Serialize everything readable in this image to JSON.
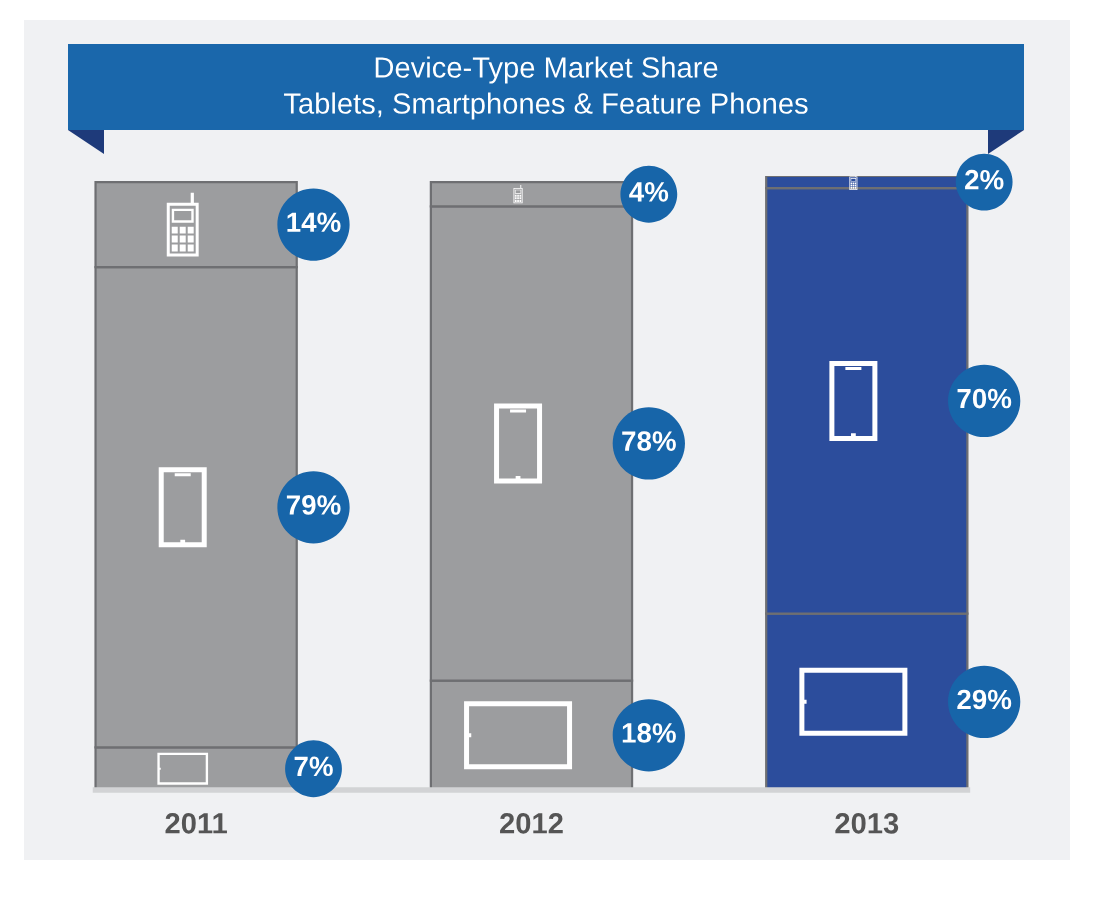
{
  "chart_data": {
    "type": "bar",
    "title": "Device-Type Market Share",
    "subtitle": "Tablets, Smartphones & Feature Phones",
    "categories": [
      "2011",
      "2012",
      "2013"
    ],
    "stacked": true,
    "series": [
      {
        "colors": [
          "#9c9d9f",
          "#9c9d9f",
          "#2c4d9c"
        ],
        "values": [
          7,
          18,
          29
        ],
        "value_labels": [
          "7%",
          "18%",
          "29%"
        ]
      },
      {
        "colors": [
          "#9c9d9f",
          "#9c9d9f",
          "#2c4d9c"
        ],
        "values": [
          79,
          78,
          70
        ],
        "value_labels": [
          "79%",
          "78%",
          "70%"
        ]
      },
      {
        "colors": [
          "#9c9d9f",
          "#9c9d9f",
          "#2c4d9c"
        ],
        "values": [
          14,
          4,
          2
        ],
        "value_labels": [
          "14%",
          "4%",
          "2%"
        ]
      }
    ]
  }
}
